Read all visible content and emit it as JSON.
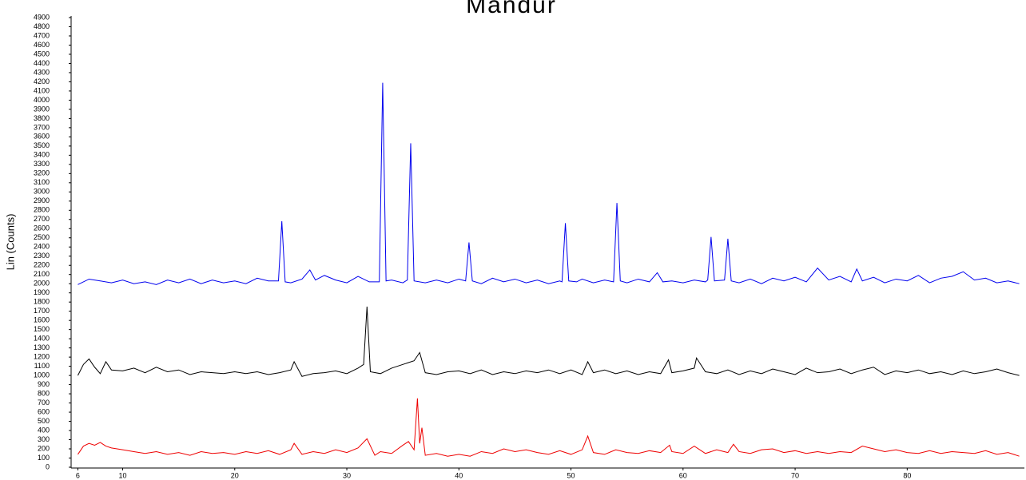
{
  "chart_data": {
    "type": "line",
    "title": "Mandur",
    "y_label": "Lin (Counts)",
    "xlim": [
      5.4,
      90.6
    ],
    "xticks": [
      6,
      10,
      20,
      30,
      40,
      50,
      60,
      70,
      80
    ],
    "ylim": [
      0,
      4900
    ],
    "yticks": [
      0,
      100,
      200,
      300,
      400,
      500,
      600,
      700,
      800,
      900,
      1000,
      1100,
      1200,
      1300,
      1400,
      1500,
      1600,
      1700,
      1800,
      1900,
      2000,
      2100,
      2200,
      2300,
      2400,
      2500,
      2600,
      2700,
      2800,
      2900,
      3000,
      3100,
      3200,
      3300,
      3400,
      3500,
      3600,
      3700,
      3800,
      3900,
      4000,
      4100,
      4200,
      4300,
      4400,
      4500,
      4600,
      4700,
      4800,
      4900
    ],
    "series": [
      {
        "color": "#0000ee",
        "x": [
          6,
          7,
          8,
          9,
          10,
          11,
          12,
          13,
          14,
          15,
          16,
          17,
          18,
          19,
          20,
          21,
          22,
          23,
          23.9,
          24.2,
          24.5,
          25,
          26,
          26.7,
          27.2,
          28,
          29,
          30,
          31,
          32,
          32.9,
          33.2,
          33.5,
          34,
          35,
          35.4,
          35.7,
          36,
          37,
          38,
          39,
          40,
          40.6,
          40.9,
          41.2,
          42,
          43,
          44,
          45,
          46,
          47,
          48,
          49,
          49.2,
          49.5,
          49.8,
          50.5,
          51,
          52,
          53,
          53.8,
          54.1,
          54.4,
          55,
          56,
          57,
          57.7,
          58.2,
          59,
          60,
          61,
          62,
          62.2,
          62.5,
          62.8,
          63.7,
          64,
          64.3,
          65,
          66,
          67,
          68,
          69,
          70,
          71,
          72,
          73,
          74,
          75,
          75.5,
          76,
          77,
          78,
          79,
          80,
          81,
          82,
          83,
          84,
          85,
          86,
          87,
          88,
          89,
          90
        ],
        "values": [
          1990,
          2050,
          2030,
          2010,
          2040,
          2000,
          2020,
          1990,
          2040,
          2010,
          2050,
          2000,
          2040,
          2010,
          2030,
          2000,
          2060,
          2030,
          2030,
          2680,
          2020,
          2010,
          2050,
          2150,
          2040,
          2090,
          2040,
          2010,
          2080,
          2020,
          2020,
          4190,
          2030,
          2040,
          2010,
          2040,
          3530,
          2030,
          2010,
          2040,
          2010,
          2050,
          2030,
          2450,
          2030,
          2000,
          2060,
          2020,
          2050,
          2010,
          2040,
          2000,
          2030,
          2020,
          2660,
          2030,
          2020,
          2050,
          2010,
          2040,
          2020,
          2880,
          2030,
          2010,
          2050,
          2020,
          2120,
          2020,
          2030,
          2010,
          2040,
          2020,
          2040,
          2510,
          2030,
          2040,
          2490,
          2030,
          2010,
          2050,
          2000,
          2060,
          2030,
          2070,
          2020,
          2170,
          2040,
          2080,
          2020,
          2160,
          2030,
          2070,
          2010,
          2050,
          2030,
          2090,
          2010,
          2060,
          2080,
          2130,
          2040,
          2060,
          2010,
          2030,
          2000
        ]
      },
      {
        "color": "#000000",
        "x": [
          6,
          6.5,
          7,
          7.5,
          8,
          8.5,
          9,
          10,
          11,
          12,
          13,
          14,
          15,
          16,
          17,
          18,
          19,
          20,
          21,
          22,
          23,
          24,
          25,
          25.3,
          26,
          27,
          28,
          29,
          30,
          31,
          31.5,
          31.8,
          32.1,
          33,
          34,
          35,
          35.5,
          36,
          36.5,
          37,
          38,
          39,
          40,
          41,
          42,
          43,
          44,
          45,
          46,
          47,
          48,
          49,
          50,
          51,
          51.5,
          52,
          53,
          54,
          55,
          56,
          57,
          58,
          58.7,
          59,
          60,
          61,
          61.2,
          62,
          63,
          64,
          65,
          66,
          67,
          68,
          69,
          70,
          71,
          72,
          73,
          74,
          75,
          76,
          77,
          78,
          79,
          80,
          81,
          82,
          83,
          84,
          85,
          86,
          87,
          88,
          89,
          90
        ],
        "values": [
          1000,
          1120,
          1180,
          1090,
          1020,
          1150,
          1060,
          1050,
          1080,
          1030,
          1090,
          1040,
          1060,
          1010,
          1040,
          1030,
          1020,
          1040,
          1020,
          1040,
          1010,
          1030,
          1060,
          1150,
          990,
          1020,
          1030,
          1050,
          1020,
          1080,
          1120,
          1750,
          1040,
          1020,
          1080,
          1120,
          1140,
          1160,
          1250,
          1030,
          1010,
          1040,
          1050,
          1020,
          1060,
          1010,
          1040,
          1020,
          1050,
          1030,
          1060,
          1020,
          1060,
          1010,
          1150,
          1030,
          1060,
          1020,
          1050,
          1010,
          1040,
          1020,
          1170,
          1030,
          1050,
          1080,
          1190,
          1040,
          1020,
          1060,
          1010,
          1050,
          1020,
          1070,
          1040,
          1010,
          1080,
          1030,
          1040,
          1070,
          1020,
          1060,
          1090,
          1010,
          1050,
          1030,
          1060,
          1020,
          1040,
          1010,
          1050,
          1020,
          1040,
          1070,
          1030,
          1000
        ]
      },
      {
        "color": "#ee0000",
        "x": [
          6,
          6.5,
          7,
          7.5,
          8,
          8.5,
          9,
          10,
          11,
          12,
          13,
          14,
          15,
          16,
          17,
          18,
          19,
          20,
          21,
          22,
          23,
          24,
          25,
          25.3,
          26,
          27,
          28,
          29,
          30,
          31,
          31.8,
          32.5,
          33,
          34,
          35,
          35.5,
          36,
          36.3,
          36.5,
          36.7,
          37,
          38,
          39,
          40,
          41,
          42,
          43,
          44,
          45,
          46,
          47,
          48,
          49,
          50,
          51,
          51.5,
          52,
          53,
          54,
          55,
          56,
          57,
          58,
          58.8,
          59,
          60,
          61,
          62,
          63,
          64,
          64.5,
          65,
          66,
          67,
          68,
          69,
          70,
          71,
          72,
          73,
          74,
          75,
          76,
          77,
          78,
          79,
          80,
          81,
          82,
          83,
          84,
          85,
          86,
          87,
          88,
          89,
          90
        ],
        "values": [
          140,
          230,
          260,
          240,
          270,
          230,
          210,
          190,
          170,
          150,
          170,
          140,
          160,
          130,
          170,
          150,
          160,
          140,
          170,
          150,
          180,
          140,
          190,
          260,
          140,
          170,
          150,
          190,
          160,
          210,
          310,
          130,
          170,
          150,
          240,
          280,
          190,
          750,
          260,
          430,
          130,
          150,
          120,
          140,
          120,
          170,
          150,
          200,
          170,
          190,
          160,
          140,
          180,
          140,
          190,
          340,
          160,
          140,
          190,
          160,
          150,
          180,
          160,
          240,
          170,
          150,
          230,
          150,
          190,
          160,
          250,
          170,
          150,
          190,
          200,
          160,
          180,
          150,
          170,
          150,
          170,
          160,
          230,
          200,
          170,
          190,
          160,
          150,
          180,
          150,
          170,
          160,
          150,
          180,
          140,
          160,
          120
        ]
      }
    ]
  }
}
